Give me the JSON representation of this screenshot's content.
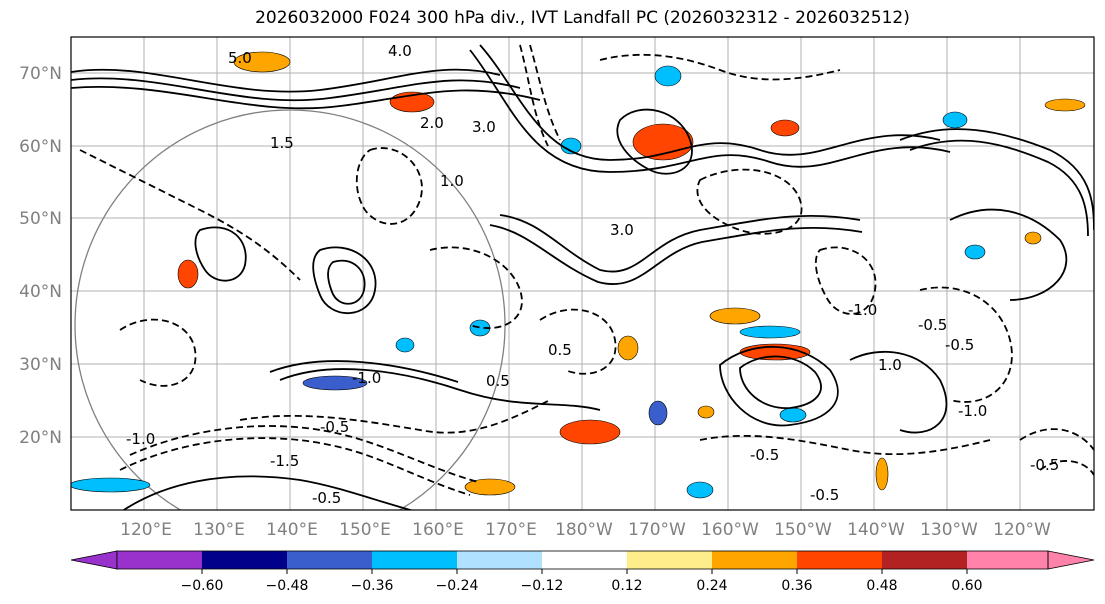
{
  "title": "2026032000 F024 300 hPa div., IVT Landfall PC (2026032312 - 2026032512)",
  "map": {
    "lat_labels": [
      "70°N",
      "60°N",
      "50°N",
      "40°N",
      "30°N",
      "20°N"
    ],
    "lon_labels": [
      "120°E",
      "130°E",
      "140°E",
      "150°E",
      "160°E",
      "170°E",
      "180°W",
      "170°W",
      "160°W",
      "150°W",
      "140°W",
      "130°W",
      "120°W"
    ],
    "contour_labels": [
      "5.0",
      "4.0",
      "2.0",
      "3.0",
      "1.5",
      "3.0",
      "1.0",
      "0.5",
      "-0.5",
      "1.0",
      "-1.0",
      "-0.5",
      "-1.0",
      "0.5",
      "-0.5",
      "-1.5",
      "-0.5",
      "-1.0",
      "-0.5",
      "-0.5",
      "-1.0",
      "-0.5"
    ]
  },
  "colorbar": {
    "tick_labels": [
      "−0.60",
      "−0.48",
      "−0.36",
      "−0.24",
      "−0.12",
      "0.12",
      "0.24",
      "0.36",
      "0.48",
      "0.60"
    ],
    "colors": [
      "#9932cc",
      "#00008b",
      "#3a5fcd",
      "#00bfff",
      "#b0e2ff",
      "#ffffff",
      "#ffec8b",
      "#ffa500",
      "#ff4500",
      "#b22222",
      "#ff82ab",
      "#ff82ab"
    ]
  }
}
